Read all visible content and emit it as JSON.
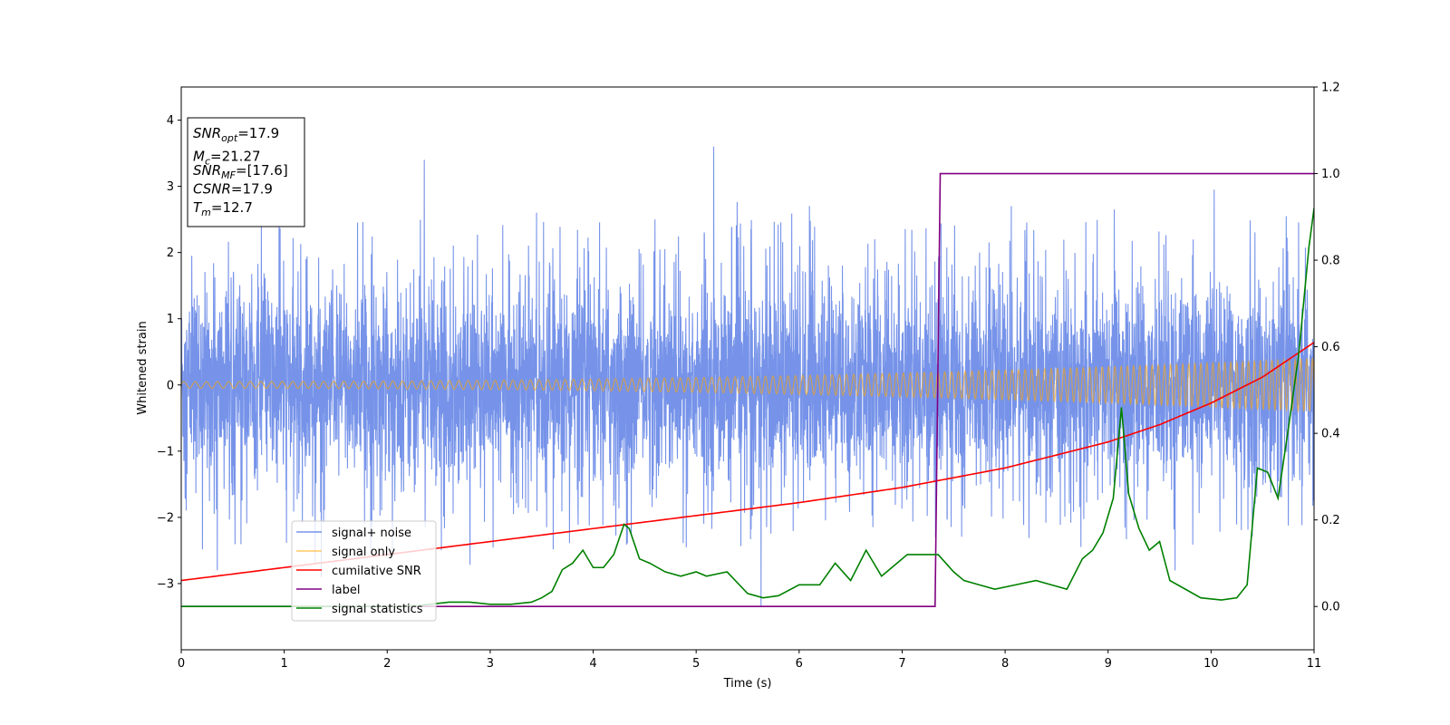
{
  "chart_data": {
    "type": "line",
    "xlabel": "Time (s)",
    "ylabel": "Whitened strain",
    "xlim": [
      0,
      11
    ],
    "ylim": [
      -4,
      4.5
    ],
    "y2lim": [
      -0.1,
      1.2
    ],
    "x_ticks": [
      0,
      1,
      2,
      3,
      4,
      5,
      6,
      7,
      8,
      9,
      10,
      11
    ],
    "y_ticks": [
      -3,
      -2,
      -1,
      0,
      1,
      2,
      3,
      4
    ],
    "y2_ticks": [
      "0.0",
      "0.2",
      "0.4",
      "0.6",
      "0.8",
      "1.0",
      "1.2"
    ],
    "legend_placement": "lower-left",
    "grid": false,
    "info_box": {
      "lines": [
        {
          "sym": "SNR",
          "sub": "opt",
          "rest": "=17.9"
        },
        {
          "sym": "M",
          "sub": "c",
          "rest": "=21.27"
        },
        {
          "sym": "SNR",
          "sub": "MF",
          "rest": "=[17.6]"
        },
        {
          "sym": "CSNR",
          "sub": "",
          "rest": "=17.9"
        },
        {
          "sym": "T",
          "sub": "m",
          "rest": "=12.7"
        }
      ]
    },
    "series": [
      {
        "name": "signal+ noise",
        "color": "#4169e1",
        "axis": "left",
        "description_points": "dense noise, approx ±1.3 envelope with spikes up to 3.6 and down to -3.3",
        "noise_sigma": 0.85,
        "spikes": [
          [
            0.95,
            2.9
          ],
          [
            2.36,
            3.4
          ],
          [
            5.17,
            3.6
          ],
          [
            5.63,
            -3.35
          ],
          [
            2.05,
            -2.5
          ],
          [
            1.3,
            -2.7
          ],
          [
            4.6,
            2.5
          ],
          [
            6.1,
            2.7
          ],
          [
            9.06,
            2.65
          ],
          [
            10.03,
            2.95
          ],
          [
            0.35,
            -2.8
          ],
          [
            3.45,
            2.6
          ],
          [
            8.06,
            2.7
          ],
          [
            9.65,
            -2.8
          ],
          [
            10.73,
            2.55
          ]
        ]
      },
      {
        "name": "signal only",
        "color": "#ffa500",
        "axis": "left",
        "amplitude_start": 0.05,
        "amplitude_end": 0.4,
        "cycles_per_second_start": 9,
        "cycles_per_second_end": 18
      },
      {
        "name": "cumilative SNR",
        "color": "#ff0000",
        "axis": "right",
        "x": [
          0,
          1,
          2,
          3,
          4,
          5,
          6,
          7,
          8,
          9,
          9.5,
          10,
          10.5,
          11
        ],
        "y": [
          0.06,
          0.09,
          0.12,
          0.15,
          0.18,
          0.21,
          0.24,
          0.275,
          0.32,
          0.38,
          0.42,
          0.47,
          0.53,
          0.61
        ]
      },
      {
        "name": "label",
        "color": "#800080",
        "axis": "right",
        "x": [
          0,
          7.32,
          7.37,
          11
        ],
        "y": [
          0.0,
          0.0,
          1.0,
          1.0
        ]
      },
      {
        "name": "signal statistics",
        "color": "#008000",
        "axis": "right",
        "x": [
          0,
          0.5,
          1,
          1.5,
          2,
          2.3,
          2.6,
          2.8,
          3.0,
          3.2,
          3.4,
          3.5,
          3.6,
          3.7,
          3.8,
          3.9,
          4.0,
          4.1,
          4.2,
          4.3,
          4.35,
          4.45,
          4.55,
          4.7,
          4.85,
          5.0,
          5.1,
          5.3,
          5.5,
          5.65,
          5.8,
          6.0,
          6.2,
          6.35,
          6.5,
          6.65,
          6.8,
          6.95,
          7.05,
          7.2,
          7.35,
          7.5,
          7.6,
          7.75,
          7.9,
          8.1,
          8.3,
          8.45,
          8.6,
          8.75,
          8.85,
          8.95,
          9.05,
          9.13,
          9.2,
          9.3,
          9.4,
          9.5,
          9.6,
          9.75,
          9.9,
          10.1,
          10.25,
          10.35,
          10.45,
          10.55,
          10.65,
          10.75,
          10.85,
          10.95,
          11.0
        ],
        "y": [
          0.0,
          0.0,
          0.0,
          0.0,
          0.0,
          0.002,
          0.01,
          0.01,
          0.005,
          0.005,
          0.01,
          0.02,
          0.035,
          0.085,
          0.1,
          0.13,
          0.09,
          0.09,
          0.12,
          0.19,
          0.18,
          0.11,
          0.1,
          0.08,
          0.07,
          0.08,
          0.07,
          0.08,
          0.03,
          0.02,
          0.025,
          0.05,
          0.05,
          0.1,
          0.06,
          0.13,
          0.07,
          0.1,
          0.12,
          0.12,
          0.12,
          0.08,
          0.06,
          0.05,
          0.04,
          0.05,
          0.06,
          0.05,
          0.04,
          0.11,
          0.13,
          0.17,
          0.25,
          0.46,
          0.26,
          0.18,
          0.13,
          0.15,
          0.06,
          0.04,
          0.02,
          0.015,
          0.02,
          0.05,
          0.32,
          0.31,
          0.25,
          0.41,
          0.58,
          0.83,
          0.92
        ]
      }
    ]
  }
}
